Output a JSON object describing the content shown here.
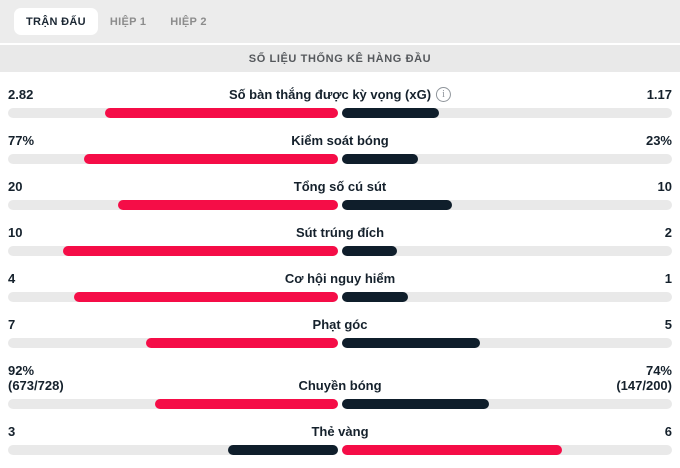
{
  "tabs": {
    "items": [
      {
        "label": "TRẬN ĐẤU",
        "active": true
      },
      {
        "label": "HIỆP 1",
        "active": false
      },
      {
        "label": "HIỆP 2",
        "active": false
      }
    ]
  },
  "section_title": "SỐ LIỆU THỐNG KÊ HÀNG ĐẦU",
  "colors": {
    "highlight": "#f50d47",
    "muted_dark": "#0f1e2b",
    "track": "#e9e9e9"
  },
  "chart_data": {
    "type": "bar",
    "title": "SỐ LIỆU THỐNG KÊ HÀNG ĐẦU",
    "categories": [
      "Số bàn thắng được kỳ vọng (xG)",
      "Kiểm soát bóng",
      "Tổng số cú sút",
      "Sút trúng đích",
      "Cơ hội nguy hiểm",
      "Phạt góc",
      "Chuyền bóng",
      "Thẻ vàng"
    ],
    "series": [
      {
        "name": "home",
        "values": [
          2.82,
          77,
          20,
          10,
          4,
          7,
          92,
          3
        ]
      },
      {
        "name": "away",
        "values": [
          1.17,
          23,
          10,
          2,
          1,
          5,
          74,
          6
        ]
      }
    ],
    "legend_position": "none",
    "note": "bar lengths proportional to value share of row total; higher value highlighted in red, lower in dark navy"
  },
  "stats": [
    {
      "label": "Số bàn thắng được kỳ vọng (xG)",
      "has_info_icon": true,
      "home_display": "2.82",
      "away_display": "1.17",
      "home_value": 2.82,
      "away_value": 1.17
    },
    {
      "label": "Kiểm soát bóng",
      "home_display": "77%",
      "away_display": "23%",
      "home_value": 77,
      "away_value": 23
    },
    {
      "label": "Tổng số cú sút",
      "home_display": "20",
      "away_display": "10",
      "home_value": 20,
      "away_value": 10
    },
    {
      "label": "Sút trúng đích",
      "home_display": "10",
      "away_display": "2",
      "home_value": 10,
      "away_value": 2
    },
    {
      "label": "Cơ hội nguy hiểm",
      "home_display": "4",
      "away_display": "1",
      "home_value": 4,
      "away_value": 1
    },
    {
      "label": "Phạt góc",
      "home_display": "7",
      "away_display": "5",
      "home_value": 7,
      "away_value": 5
    },
    {
      "label": "Chuyền bóng",
      "home_display": "92%",
      "home_sub": "(673/728)",
      "away_display": "74%",
      "away_sub": "(147/200)",
      "home_value": 92,
      "away_value": 74
    },
    {
      "label": "Thẻ vàng",
      "home_display": "3",
      "away_display": "6",
      "home_value": 3,
      "away_value": 6
    }
  ]
}
